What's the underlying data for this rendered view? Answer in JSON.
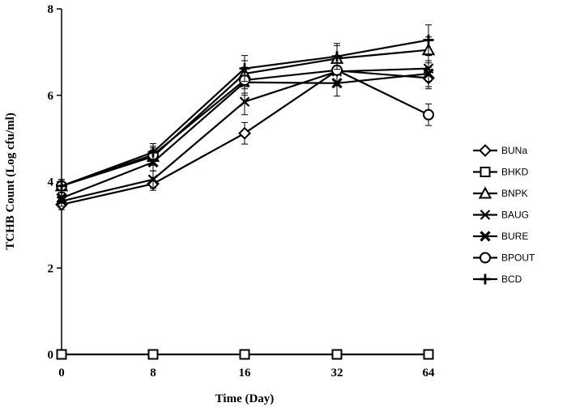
{
  "chart_data": {
    "type": "line",
    "title": "",
    "xlabel": "Time (Day)",
    "ylabel": "TCHB Count (Log cfu/ml)",
    "categories": [
      "0",
      "8",
      "16",
      "32",
      "64"
    ],
    "ylim": [
      0,
      8
    ],
    "yticks": [
      "0",
      "2",
      "4",
      "6",
      "8"
    ],
    "grid": false,
    "legend_position": "right",
    "series": [
      {
        "name": "BUNa",
        "marker": "diamond",
        "values": [
          3.47,
          3.95,
          5.12,
          6.57,
          6.4
        ],
        "errors": [
          0.12,
          0.15,
          0.25,
          0.35,
          0.25
        ]
      },
      {
        "name": "BHKD",
        "marker": "square",
        "values": [
          0,
          0,
          0,
          0,
          0
        ],
        "errors": [
          0,
          0,
          0,
          0,
          0
        ]
      },
      {
        "name": "BNPK",
        "marker": "triangle",
        "values": [
          3.9,
          4.58,
          6.5,
          6.85,
          7.05
        ],
        "errors": [
          0.15,
          0.2,
          0.3,
          0.3,
          0.3
        ]
      },
      {
        "name": "BAUG",
        "marker": "x",
        "values": [
          3.55,
          4.05,
          5.85,
          6.55,
          6.62
        ],
        "errors": [
          0.12,
          0.2,
          0.3,
          0.3,
          0.3
        ]
      },
      {
        "name": "BURE",
        "marker": "x-bold",
        "values": [
          3.62,
          4.45,
          6.3,
          6.28,
          6.5
        ],
        "errors": [
          0.12,
          0.2,
          0.3,
          0.3,
          0.3
        ]
      },
      {
        "name": "BPOUT",
        "marker": "circle",
        "values": [
          3.9,
          4.62,
          6.35,
          6.58,
          5.55
        ],
        "errors": [
          0.15,
          0.2,
          0.3,
          0.3,
          0.25
        ]
      },
      {
        "name": "BCD",
        "marker": "plus",
        "values": [
          3.9,
          4.68,
          6.62,
          6.9,
          7.28
        ],
        "errors": [
          0.15,
          0.2,
          0.3,
          0.3,
          0.35
        ]
      }
    ]
  }
}
